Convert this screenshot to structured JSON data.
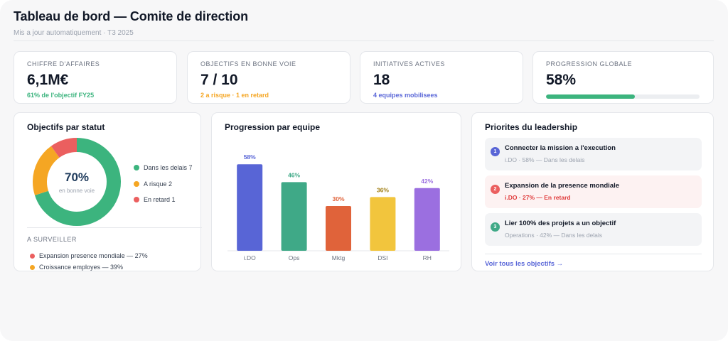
{
  "header": {
    "title": "Tableau de bord — Comite de direction",
    "subtitle": "Mis a jour automatiquement · T3 2025"
  },
  "kpis": [
    {
      "label": "CHIFFRE D'AFFAIRES",
      "value": "6,1M€",
      "note": "61% de l'objectif FY25",
      "note_color": "#3cb47e"
    },
    {
      "label": "OBJECTIFS EN BONNE VOIE",
      "value": "7 / 10",
      "note": "2 a risque · 1 en retard",
      "note_color": "#f5a623"
    },
    {
      "label": "INITIATIVES ACTIVES",
      "value": "18",
      "note": "4 equipes mobilisees",
      "note_color": "#5a67d8"
    },
    {
      "label": "PROGRESSION GLOBALE",
      "value": "58%",
      "progress": 0.58,
      "progress_color": "#3cb47e"
    }
  ],
  "status_panel": {
    "title": "Objectifs par statut",
    "center_value": "70%",
    "center_label": "en bonne voie",
    "legend": [
      {
        "label": "Dans les delais 7",
        "value": 7,
        "color": "#3cb47e"
      },
      {
        "label": "A risque 2",
        "value": 2,
        "color": "#f5a623"
      },
      {
        "label": "En retard 1",
        "value": 1,
        "color": "#eb5f5f"
      }
    ],
    "watch_title": "A SURVEILLER",
    "watch_items": [
      {
        "label": "Expansion presence mondiale — 27%",
        "color": "#eb5f5f"
      },
      {
        "label": "Croissance employes — 39%",
        "color": "#f5a623"
      }
    ]
  },
  "team_panel": {
    "title": "Progression par equipe"
  },
  "chart_data": {
    "type": "bar",
    "categories": [
      "i.DO",
      "Ops",
      "Mktg",
      "DSI",
      "RH"
    ],
    "values": [
      58,
      46,
      30,
      36,
      42
    ],
    "value_labels": [
      "58%",
      "46%",
      "30%",
      "36%",
      "42%"
    ],
    "colors": [
      "#5865d6",
      "#3fa987",
      "#e0633a",
      "#f2c53d",
      "#9b6fe0"
    ],
    "label_colors": [
      "#5865d6",
      "#3fa987",
      "#e0633a",
      "#a07e12",
      "#9b6fe0"
    ],
    "ylim": [
      0,
      70
    ]
  },
  "priorities_panel": {
    "title": "Priorites du leadership",
    "items": [
      {
        "num": "1",
        "title": "Connecter la mission a l'execution",
        "meta": "i.DO · 58% — Dans les delais",
        "num_color": "#5865d6",
        "bg": "#f3f4f6",
        "meta_color": "#9ca3af"
      },
      {
        "num": "2",
        "title": "Expansion de la presence mondiale",
        "meta": "i.DO · 27% — En retard",
        "num_color": "#eb5f5f",
        "bg": "#fdf2f2",
        "meta_color": "#e03b3b"
      },
      {
        "num": "3",
        "title": "Lier 100% des projets a un objectif",
        "meta": "Operations · 42% — Dans les delais",
        "num_color": "#3fa987",
        "bg": "#f3f4f6",
        "meta_color": "#9ca3af"
      }
    ],
    "link": "Voir tous les objectifs →"
  }
}
